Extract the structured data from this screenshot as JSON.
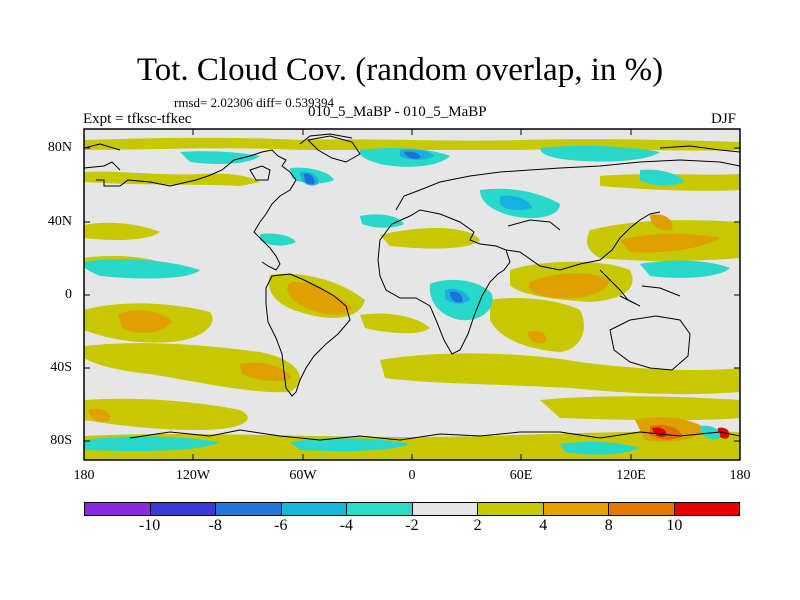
{
  "title": "Tot. Cloud Cov. (random overlap, in %)",
  "stats": "rmsd= 2.02306 diff= 0.539394",
  "case_label": "010_5_MaBP - 010_5_MaBP",
  "expt_label": "Expt = tfksc-tfkec",
  "season": "DJF",
  "x_axis": {
    "ticks": [
      "180",
      "120W",
      "60W",
      "0",
      "60E",
      "120E",
      "180"
    ]
  },
  "y_axis": {
    "ticks": [
      "80N",
      "40N",
      "0",
      "40S",
      "80S"
    ]
  },
  "colorbar": {
    "colors": [
      "#8a2be2",
      "#3b3bd6",
      "#1e78dc",
      "#18b8dc",
      "#28dcc8",
      "#e6e6e6",
      "#c8c800",
      "#e6a000",
      "#e67800",
      "#e60000"
    ],
    "labels": [
      "-10",
      "-8",
      "-6",
      "-4",
      "-2",
      "2",
      "4",
      "8",
      "10"
    ]
  },
  "colors": {
    "background": "#e6e6e6",
    "yellow": "#c8c800",
    "orange": "#e0a000",
    "dark_orange": "#e07000",
    "red": "#e00000",
    "cyan": "#28d8c8",
    "light_blue": "#18b0e0",
    "blue": "#1e70dc"
  }
}
